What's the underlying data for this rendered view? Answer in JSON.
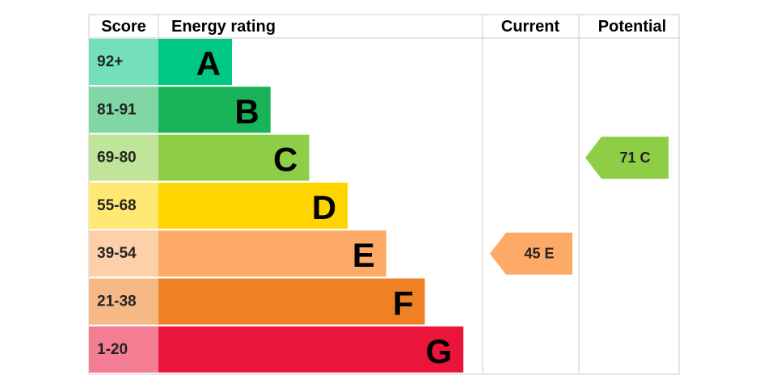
{
  "header": {
    "score": "Score",
    "rating": "Energy rating",
    "current": "Current",
    "potential": "Potential"
  },
  "bands": [
    {
      "score": "92+",
      "letter": "A",
      "color": "#00c781"
    },
    {
      "score": "81-91",
      "letter": "B",
      "color": "#19b459"
    },
    {
      "score": "69-80",
      "letter": "C",
      "color": "#8dce46"
    },
    {
      "score": "55-68",
      "letter": "D",
      "color": "#ffd500"
    },
    {
      "score": "39-54",
      "letter": "E",
      "color": "#fcaa65"
    },
    {
      "score": "21-38",
      "letter": "F",
      "color": "#ef8023"
    },
    {
      "score": "1-20",
      "letter": "G",
      "color": "#e9153b"
    }
  ],
  "current": {
    "value": 45,
    "label": "45 E"
  },
  "potential": {
    "value": 71,
    "label": "71 C"
  }
}
